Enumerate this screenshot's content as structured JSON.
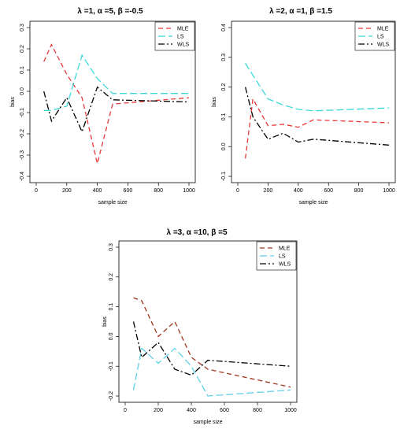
{
  "chart_data": [
    {
      "type": "line",
      "title": "λ =1, α =5, β =-0.5",
      "xlabel": "sample size",
      "ylabel": "bias",
      "xlim": [
        0,
        1000
      ],
      "ylim": [
        -0.4,
        0.3
      ],
      "x_ticks": [
        0,
        200,
        400,
        600,
        800,
        1000
      ],
      "y_ticks": [
        -0.4,
        -0.3,
        -0.2,
        -0.1,
        0.0,
        0.1,
        0.2,
        0.3
      ],
      "x_tick_labels": [
        "0",
        "200",
        "400",
        "600",
        "800",
        "1000"
      ],
      "y_tick_labels": [
        "-0.4",
        "-0.3",
        "-0.2",
        "-0.1",
        "0.0",
        "0.1",
        "0.2",
        "0.3"
      ],
      "grid": false,
      "legend_position": "top-right",
      "x": [
        50,
        100,
        200,
        300,
        400,
        500,
        1000
      ],
      "series": [
        {
          "name": "MLE",
          "color": "#e8383a",
          "dash": "6,4",
          "values": [
            0.14,
            0.22,
            0.08,
            -0.03,
            -0.34,
            -0.06,
            -0.03
          ]
        },
        {
          "name": "LS",
          "color": "#3fd8d8",
          "dash": "9,4",
          "values": [
            -0.09,
            -0.09,
            -0.07,
            0.17,
            0.06,
            -0.01,
            -0.01
          ]
        },
        {
          "name": "WLS",
          "color": "#000000",
          "dash": "8,3,2,3",
          "values": [
            0.0,
            -0.14,
            -0.03,
            -0.19,
            0.02,
            -0.04,
            -0.05
          ]
        }
      ]
    },
    {
      "type": "line",
      "title": "λ =2, α =1, β =1.5",
      "xlabel": "sample size",
      "ylabel": "bias",
      "xlim": [
        0,
        1000
      ],
      "ylim": [
        -0.1,
        0.4
      ],
      "x_ticks": [
        0,
        200,
        400,
        600,
        800,
        1000
      ],
      "y_ticks": [
        -0.1,
        0.0,
        0.1,
        0.2,
        0.3,
        0.4
      ],
      "x_tick_labels": [
        "0",
        "200",
        "400",
        "600",
        "800",
        "1000"
      ],
      "y_tick_labels": [
        "-0.1",
        "0.0",
        "0.1",
        "0.2",
        "0.3",
        "0.4"
      ],
      "grid": false,
      "legend_position": "top-right",
      "x": [
        50,
        100,
        200,
        300,
        400,
        500,
        1000
      ],
      "series": [
        {
          "name": "MLE",
          "color": "#e8383a",
          "dash": "6,4",
          "values": [
            -0.04,
            0.16,
            0.07,
            0.075,
            0.065,
            0.09,
            0.08
          ]
        },
        {
          "name": "LS",
          "color": "#3fd8d8",
          "dash": "9,4",
          "values": [
            0.28,
            0.24,
            0.16,
            0.14,
            0.125,
            0.12,
            0.13
          ]
        },
        {
          "name": "WLS",
          "color": "#000000",
          "dash": "8,3,2,3",
          "values": [
            0.2,
            0.1,
            0.025,
            0.045,
            0.015,
            0.025,
            0.005
          ]
        }
      ]
    },
    {
      "type": "line",
      "title": "λ =3, α =10, β =5",
      "xlabel": "sample size",
      "ylabel": "bias",
      "xlim": [
        0,
        1000
      ],
      "ylim": [
        -0.2,
        0.3
      ],
      "x_ticks": [
        0,
        200,
        400,
        600,
        800,
        1000
      ],
      "y_ticks": [
        -0.2,
        -0.1,
        0.0,
        0.1,
        0.2,
        0.3
      ],
      "x_tick_labels": [
        "0",
        "200",
        "400",
        "600",
        "800",
        "1000"
      ],
      "y_tick_labels": [
        "-0.2",
        "-0.1",
        "0.0",
        "0.1",
        "0.2",
        "0.3"
      ],
      "grid": false,
      "legend_position": "top-right",
      "x": [
        50,
        100,
        200,
        300,
        400,
        500,
        1000
      ],
      "series": [
        {
          "name": "MLE",
          "color": "#a0341e",
          "dash": "6,4",
          "values": [
            0.13,
            0.12,
            0.0,
            0.05,
            -0.07,
            -0.11,
            -0.17
          ]
        },
        {
          "name": "LS",
          "color": "#5fd0e8",
          "dash": "9,4",
          "values": [
            -0.18,
            -0.04,
            -0.09,
            -0.04,
            -0.1,
            -0.2,
            -0.18
          ]
        },
        {
          "name": "WLS",
          "color": "#000000",
          "dash": "8,3,2,3",
          "values": [
            0.05,
            -0.07,
            -0.02,
            -0.11,
            -0.13,
            -0.08,
            -0.1
          ]
        }
      ]
    }
  ]
}
